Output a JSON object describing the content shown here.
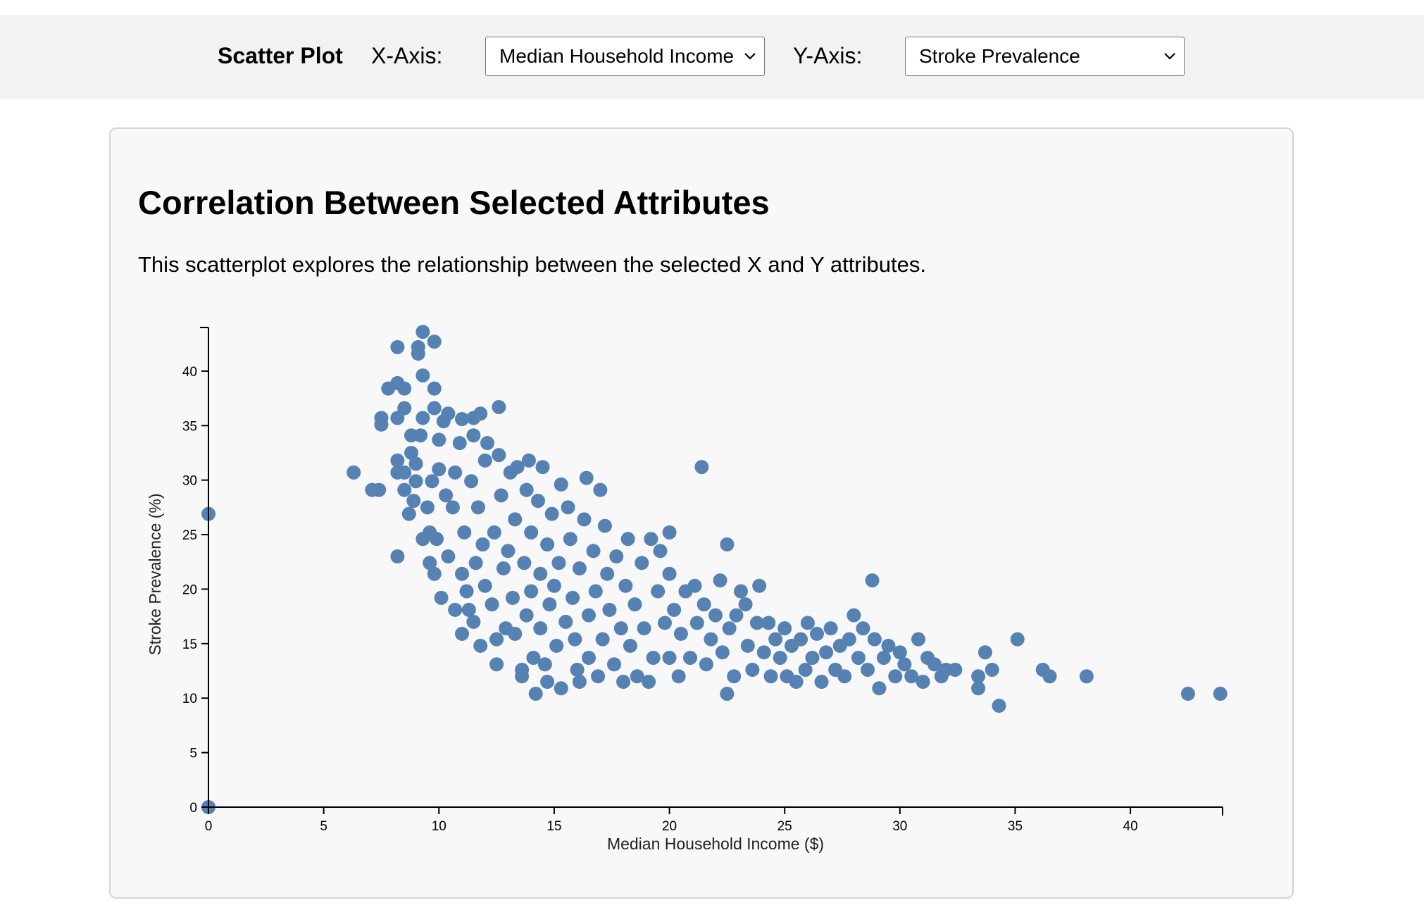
{
  "toolbar": {
    "title": "Scatter Plot",
    "x_axis_label": "X-Axis:",
    "x_axis_selected": "Median Household Income",
    "y_axis_label": "Y-Axis:",
    "y_axis_selected": "Stroke Prevalence",
    "chevron_icon": "chevron-down-icon"
  },
  "panel": {
    "title": "Correlation Between Selected Attributes",
    "description": "This scatterplot explores the relationship between the selected X and Y attributes."
  },
  "colors": {
    "point": "#5581b3",
    "axis": "#000000",
    "panel_bg": "#f8f8f8",
    "toolbar_bg": "#f2f2f2"
  },
  "chart_data": {
    "type": "scatter",
    "title": "",
    "xlabel": "Median Household Income ($)",
    "ylabel": "Stroke Prevalence (%)",
    "xlim": [
      0,
      44
    ],
    "ylim": [
      0,
      44
    ],
    "xticks": [
      0,
      5,
      10,
      15,
      20,
      25,
      30,
      35,
      40
    ],
    "yticks": [
      0,
      5,
      10,
      15,
      20,
      25,
      30,
      35,
      40
    ],
    "grid": false,
    "legend": "none",
    "points": [
      [
        0,
        0
      ],
      [
        0,
        26.9
      ],
      [
        6.3,
        30.7
      ],
      [
        7.1,
        29.1
      ],
      [
        7.4,
        29.1
      ],
      [
        7.5,
        35.7
      ],
      [
        7.5,
        35.1
      ],
      [
        7.8,
        38.4
      ],
      [
        8.2,
        42.2
      ],
      [
        8.2,
        38.9
      ],
      [
        8.2,
        35.7
      ],
      [
        8.2,
        31.8
      ],
      [
        8.2,
        30.7
      ],
      [
        8.2,
        23.0
      ],
      [
        8.5,
        38.4
      ],
      [
        8.5,
        36.6
      ],
      [
        8.5,
        30.7
      ],
      [
        8.5,
        29.1
      ],
      [
        8.7,
        26.9
      ],
      [
        8.8,
        34.1
      ],
      [
        8.8,
        32.5
      ],
      [
        8.9,
        28.1
      ],
      [
        9.0,
        29.9
      ],
      [
        9.0,
        31.5
      ],
      [
        9.1,
        42.2
      ],
      [
        9.1,
        41.6
      ],
      [
        9.2,
        34.1
      ],
      [
        9.3,
        43.6
      ],
      [
        9.3,
        39.6
      ],
      [
        9.3,
        35.7
      ],
      [
        9.3,
        24.6
      ],
      [
        9.5,
        27.5
      ],
      [
        9.6,
        22.4
      ],
      [
        9.6,
        25.2
      ],
      [
        9.7,
        29.9
      ],
      [
        9.8,
        42.7
      ],
      [
        9.8,
        38.4
      ],
      [
        9.8,
        36.6
      ],
      [
        9.8,
        21.4
      ],
      [
        9.9,
        24.6
      ],
      [
        10.0,
        33.7
      ],
      [
        10.0,
        31.0
      ],
      [
        10.1,
        19.2
      ],
      [
        10.2,
        35.4
      ],
      [
        10.3,
        28.6
      ],
      [
        10.4,
        23.0
      ],
      [
        10.4,
        36.1
      ],
      [
        10.6,
        27.5
      ],
      [
        10.7,
        30.7
      ],
      [
        10.7,
        18.1
      ],
      [
        10.9,
        33.4
      ],
      [
        11.0,
        15.9
      ],
      [
        11.0,
        21.4
      ],
      [
        11.0,
        35.6
      ],
      [
        11.1,
        25.2
      ],
      [
        11.2,
        19.8
      ],
      [
        11.3,
        18.1
      ],
      [
        11.4,
        29.9
      ],
      [
        11.5,
        34.1
      ],
      [
        11.5,
        35.7
      ],
      [
        11.5,
        17.0
      ],
      [
        11.6,
        22.4
      ],
      [
        11.7,
        27.5
      ],
      [
        11.8,
        14.8
      ],
      [
        11.8,
        36.1
      ],
      [
        11.9,
        24.1
      ],
      [
        12.0,
        20.3
      ],
      [
        12.0,
        31.8
      ],
      [
        12.1,
        33.4
      ],
      [
        12.3,
        18.6
      ],
      [
        12.4,
        25.2
      ],
      [
        12.5,
        13.1
      ],
      [
        12.5,
        15.4
      ],
      [
        12.6,
        36.7
      ],
      [
        12.6,
        32.3
      ],
      [
        12.7,
        28.6
      ],
      [
        12.8,
        21.9
      ],
      [
        12.9,
        16.4
      ],
      [
        13.0,
        23.5
      ],
      [
        13.1,
        30.7
      ],
      [
        13.2,
        19.2
      ],
      [
        13.3,
        26.4
      ],
      [
        13.3,
        15.9
      ],
      [
        13.4,
        31.2
      ],
      [
        13.6,
        12.0
      ],
      [
        13.6,
        12.6
      ],
      [
        13.7,
        22.4
      ],
      [
        13.8,
        29.1
      ],
      [
        13.8,
        17.6
      ],
      [
        13.9,
        31.8
      ],
      [
        14.0,
        25.2
      ],
      [
        14.0,
        19.8
      ],
      [
        14.1,
        13.7
      ],
      [
        14.2,
        10.4
      ],
      [
        14.3,
        28.1
      ],
      [
        14.4,
        21.4
      ],
      [
        14.4,
        16.4
      ],
      [
        14.5,
        31.2
      ],
      [
        14.6,
        13.1
      ],
      [
        14.7,
        24.1
      ],
      [
        14.7,
        11.5
      ],
      [
        14.8,
        18.6
      ],
      [
        14.9,
        26.9
      ],
      [
        15.0,
        20.3
      ],
      [
        15.1,
        14.8
      ],
      [
        15.2,
        22.4
      ],
      [
        15.3,
        10.9
      ],
      [
        15.3,
        29.6
      ],
      [
        15.5,
        17.0
      ],
      [
        15.6,
        27.5
      ],
      [
        15.7,
        24.6
      ],
      [
        15.8,
        19.2
      ],
      [
        15.9,
        15.4
      ],
      [
        16.0,
        12.6
      ],
      [
        16.1,
        21.9
      ],
      [
        16.1,
        11.5
      ],
      [
        16.3,
        26.4
      ],
      [
        16.4,
        30.2
      ],
      [
        16.5,
        17.6
      ],
      [
        16.5,
        13.7
      ],
      [
        16.7,
        23.5
      ],
      [
        16.8,
        19.8
      ],
      [
        16.9,
        12.0
      ],
      [
        17.0,
        29.1
      ],
      [
        17.1,
        15.4
      ],
      [
        17.2,
        25.8
      ],
      [
        17.3,
        21.4
      ],
      [
        17.4,
        18.1
      ],
      [
        17.6,
        13.1
      ],
      [
        17.7,
        23.0
      ],
      [
        17.9,
        16.4
      ],
      [
        18.0,
        11.5
      ],
      [
        18.1,
        20.3
      ],
      [
        18.2,
        24.6
      ],
      [
        18.3,
        14.8
      ],
      [
        18.5,
        18.6
      ],
      [
        18.6,
        12.0
      ],
      [
        18.8,
        22.4
      ],
      [
        18.9,
        16.4
      ],
      [
        19.1,
        11.5
      ],
      [
        19.2,
        24.6
      ],
      [
        19.3,
        13.7
      ],
      [
        19.5,
        19.8
      ],
      [
        19.6,
        23.5
      ],
      [
        19.8,
        16.9
      ],
      [
        20.0,
        25.2
      ],
      [
        20.0,
        13.7
      ],
      [
        20.0,
        21.4
      ],
      [
        20.2,
        18.1
      ],
      [
        20.4,
        12.0
      ],
      [
        20.5,
        15.9
      ],
      [
        20.7,
        19.8
      ],
      [
        20.9,
        13.7
      ],
      [
        21.1,
        20.3
      ],
      [
        21.2,
        16.9
      ],
      [
        21.4,
        31.2
      ],
      [
        21.5,
        18.6
      ],
      [
        21.6,
        13.1
      ],
      [
        21.8,
        15.4
      ],
      [
        22.0,
        17.6
      ],
      [
        22.2,
        20.8
      ],
      [
        22.3,
        14.2
      ],
      [
        22.5,
        10.4
      ],
      [
        22.5,
        24.1
      ],
      [
        22.6,
        16.4
      ],
      [
        22.8,
        12.0
      ],
      [
        22.9,
        17.6
      ],
      [
        23.1,
        19.8
      ],
      [
        23.3,
        18.6
      ],
      [
        23.4,
        14.8
      ],
      [
        23.6,
        12.6
      ],
      [
        23.8,
        16.9
      ],
      [
        23.9,
        20.3
      ],
      [
        24.1,
        14.2
      ],
      [
        24.3,
        16.9
      ],
      [
        24.4,
        12.0
      ],
      [
        24.6,
        15.4
      ],
      [
        24.8,
        13.7
      ],
      [
        25.0,
        16.4
      ],
      [
        25.1,
        12.0
      ],
      [
        25.3,
        14.8
      ],
      [
        25.5,
        11.5
      ],
      [
        25.7,
        15.4
      ],
      [
        25.9,
        12.6
      ],
      [
        26.0,
        16.9
      ],
      [
        26.2,
        13.7
      ],
      [
        26.4,
        15.9
      ],
      [
        26.6,
        11.5
      ],
      [
        26.8,
        14.2
      ],
      [
        27.0,
        16.4
      ],
      [
        27.2,
        12.6
      ],
      [
        27.4,
        14.8
      ],
      [
        27.6,
        12.0
      ],
      [
        27.8,
        15.4
      ],
      [
        28.0,
        17.6
      ],
      [
        28.2,
        13.7
      ],
      [
        28.4,
        16.4
      ],
      [
        28.6,
        12.6
      ],
      [
        28.8,
        20.8
      ],
      [
        28.9,
        15.4
      ],
      [
        29.1,
        10.9
      ],
      [
        29.3,
        13.7
      ],
      [
        29.5,
        14.8
      ],
      [
        29.8,
        12.0
      ],
      [
        30.0,
        14.2
      ],
      [
        30.2,
        13.1
      ],
      [
        30.5,
        12.0
      ],
      [
        30.8,
        15.4
      ],
      [
        31.0,
        11.5
      ],
      [
        31.2,
        13.7
      ],
      [
        31.5,
        13.1
      ],
      [
        31.8,
        12.0
      ],
      [
        32.0,
        12.6
      ],
      [
        32.4,
        12.6
      ],
      [
        33.4,
        10.9
      ],
      [
        33.4,
        12.0
      ],
      [
        33.7,
        14.2
      ],
      [
        34.0,
        12.6
      ],
      [
        34.3,
        9.3
      ],
      [
        35.1,
        15.4
      ],
      [
        36.2,
        12.6
      ],
      [
        36.5,
        12.0
      ],
      [
        38.1,
        12.0
      ],
      [
        42.5,
        10.4
      ],
      [
        43.9,
        10.4
      ]
    ]
  }
}
